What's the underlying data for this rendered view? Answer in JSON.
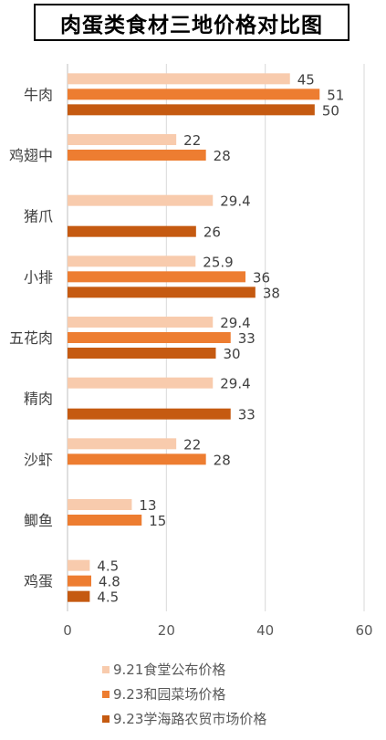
{
  "chart_data": {
    "type": "bar",
    "orientation": "horizontal",
    "title": "肉蛋类食材三地价格对比图",
    "categories": [
      "牛肉",
      "鸡翅中",
      "猪爪",
      "小排",
      "五花肉",
      "精肉",
      "沙虾",
      "鲫鱼",
      "鸡蛋"
    ],
    "series": [
      {
        "name": "9.21食堂公布价格",
        "color": "#F8CBAD",
        "values": [
          45,
          22,
          29.4,
          25.9,
          29.4,
          29.4,
          22,
          13,
          4.5
        ]
      },
      {
        "name": "9.23和园菜场价格",
        "color": "#ED7D31",
        "values": [
          51,
          28,
          null,
          36,
          33,
          null,
          28,
          15,
          4.8
        ]
      },
      {
        "name": "9.23学海路农贸市场价格",
        "color": "#C55A11",
        "values": [
          50,
          null,
          26,
          38,
          30,
          33,
          null,
          null,
          4.5
        ]
      }
    ],
    "xlim": [
      0,
      60
    ],
    "xticks": [
      0,
      20,
      40,
      60
    ],
    "grid": true,
    "legend_position": "bottom"
  }
}
